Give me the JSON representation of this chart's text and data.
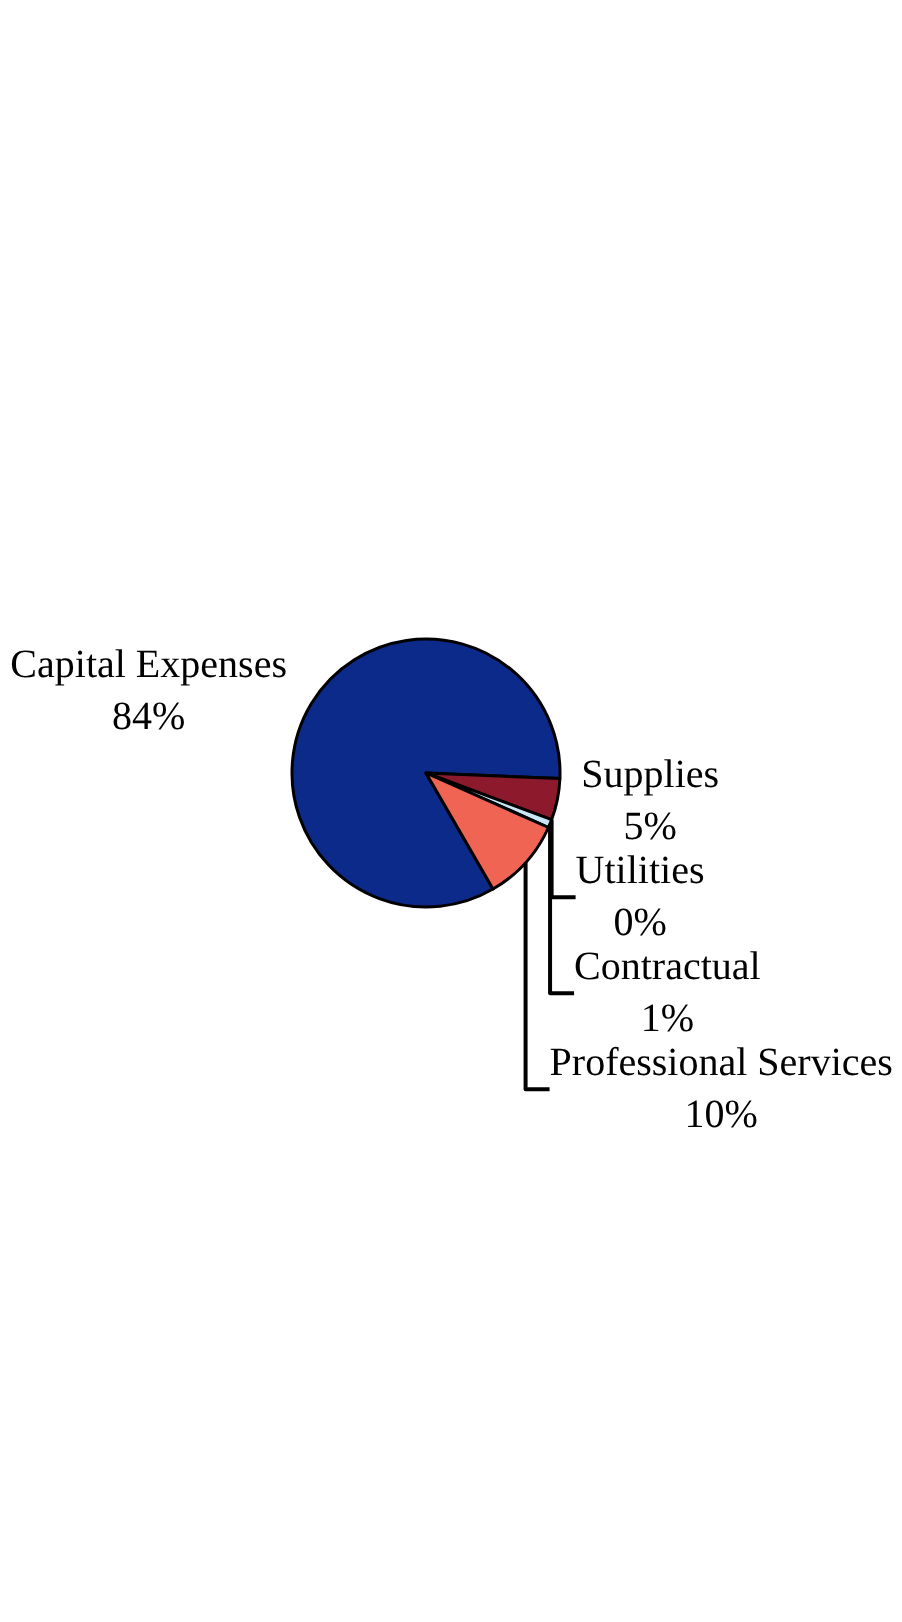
{
  "chart_data": {
    "type": "pie",
    "categories": [
      "Capital Expenses",
      "Supplies",
      "Utilities",
      "Contractual",
      "Professional Services"
    ],
    "values": [
      84,
      5,
      0,
      1,
      10
    ],
    "value_labels": [
      "84%",
      "5%",
      "0%",
      "1%",
      "10%"
    ],
    "colors": [
      "#0c2a8a",
      "#8c1a2c",
      "#ffffc0",
      "#c8e6f6",
      "#f06454"
    ]
  }
}
